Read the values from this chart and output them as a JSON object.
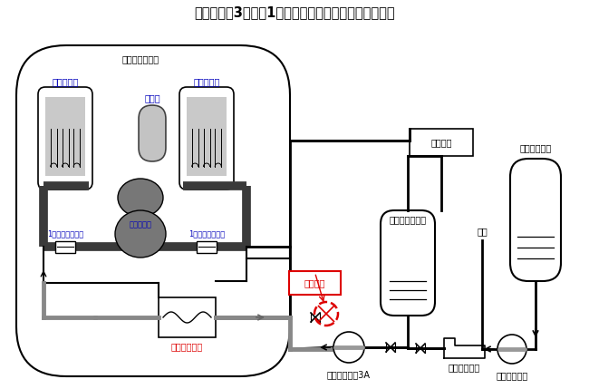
{
  "title": "伊方発電所3号機　1次冷却水充てん・抽出系統概略図",
  "label_原子炉格納容器": "原子炉格納容器",
  "label_蒸気発生器": "蒸気発生器",
  "label_加圧器": "加圧器",
  "label_原子炉容器": "原子炉容器",
  "label_1次冷却材ポンプ": "1次冷却材ポンプ",
  "label_再生熱交換器": "再生熱交換器",
  "label_当該箇所": "当該箇所",
  "label_充てんポンプ3A": "充てんポンプ3A",
  "label_体積制御タンク": "体積制御タンク",
  "label_浄化設備": "浄化設備",
  "label_純水": "純水",
  "label_ほう酸タンク": "ほう酸タンク",
  "label_ほう酸ポンプ": "ほう酸ポンプ",
  "label_ほう酸混合器": "ほう酸混合器",
  "bg_color": "#ffffff",
  "black": "#000000",
  "dark_gray": "#3a3a3a",
  "mid_gray": "#666666",
  "light_gray": "#aaaaaa",
  "blue": "#0000bb",
  "red": "#dd0000",
  "title_fontsize": 10.5,
  "lbl_fontsize": 7.0,
  "small_fontsize": 6.0
}
